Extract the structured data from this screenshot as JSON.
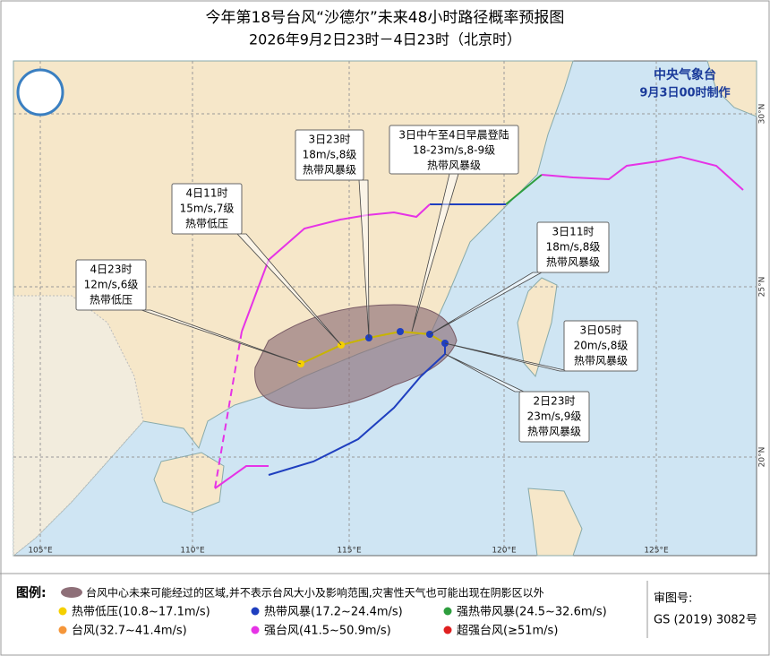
{
  "header": {
    "title": "今年第18号台风“沙德尔”未来48小时路径概率预报图",
    "subtitle": "2026年9月2日23时－4日23时（北京时）"
  },
  "agency": {
    "name": "中央气象台",
    "date": "9月3日00时制作"
  },
  "callouts": [
    {
      "lines": [
        "3日23时",
        "18m/s,8级",
        "热带风暴级"
      ]
    },
    {
      "lines": [
        "3日中午至4日早晨登陆",
        "18-23m/s,8-9级",
        "热带风暴级"
      ]
    },
    {
      "lines": [
        "4日11时",
        "15m/s,7级",
        "热带低压"
      ]
    },
    {
      "lines": [
        "4日23时",
        "12m/s,6级",
        "热带低压"
      ]
    },
    {
      "lines": [
        "3日11时",
        "18m/s,8级",
        "热带风暴级"
      ]
    },
    {
      "lines": [
        "3日05时",
        "20m/s,8级",
        "热带风暴级"
      ]
    },
    {
      "lines": [
        "2日23时",
        "23m/s,9级",
        "热带风暴级"
      ]
    }
  ],
  "axes": {
    "lon": [
      "105°E",
      "110°E",
      "115°E",
      "120°E",
      "125°E"
    ],
    "lat": [
      "30°N",
      "25°N",
      "20°N"
    ]
  },
  "legend": {
    "title": "图例:",
    "cone": "台风中心未来可能经过的区域,并不表示台风大小及影响范围,灾害性天气也可能出现在阴影区以外",
    "items": [
      {
        "label": "热带低压(10.8~17.1m/s)",
        "color": "#f5d000"
      },
      {
        "label": "热带风暴(17.2~24.4m/s)",
        "color": "#1f3fbf"
      },
      {
        "label": "强热带风暴(24.5~32.6m/s)",
        "color": "#2e9e3e"
      },
      {
        "label": "台风(32.7~41.4m/s)",
        "color": "#f5963a"
      },
      {
        "label": "强台风(41.5~50.9m/s)",
        "color": "#e633e6"
      },
      {
        "label": "超强台风(≥51m/s)",
        "color": "#e02020"
      }
    ],
    "review_label": "审图号:",
    "review_number": "GS (2019) 3082号"
  }
}
